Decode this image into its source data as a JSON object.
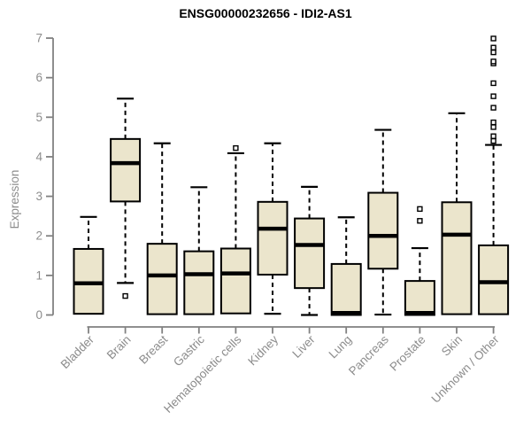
{
  "chart_data": {
    "type": "boxplot",
    "title": "ENSG00000232656 - IDI2-AS1",
    "ylabel": "Expression",
    "xlabel": "",
    "ylim": [
      0,
      7
    ],
    "yticks": [
      0,
      1,
      2,
      3,
      4,
      5,
      6,
      7
    ],
    "grid": false,
    "legend": false,
    "categories": [
      "Bladder",
      "Brain",
      "Breast",
      "Gastric",
      "Hematopoietic cells",
      "Kidney",
      "Liver",
      "Lung",
      "Pancreas",
      "Prostate",
      "Skin",
      "Unknown / Other"
    ],
    "series": [
      {
        "category": "Bladder",
        "whisker_low": null,
        "q1": 0.03,
        "median": 0.8,
        "q3": 1.67,
        "whisker_high": 2.48,
        "outliers": []
      },
      {
        "category": "Brain",
        "whisker_low": 0.81,
        "q1": 2.87,
        "median": 3.84,
        "q3": 4.45,
        "whisker_high": 5.47,
        "outliers": [
          0.48
        ]
      },
      {
        "category": "Breast",
        "whisker_low": null,
        "q1": 0.02,
        "median": 1.0,
        "q3": 1.8,
        "whisker_high": 4.34,
        "outliers": []
      },
      {
        "category": "Gastric",
        "whisker_low": null,
        "q1": 0.02,
        "median": 1.03,
        "q3": 1.61,
        "whisker_high": 3.23,
        "outliers": []
      },
      {
        "category": "Hematopoietic cells",
        "whisker_low": null,
        "q1": 0.04,
        "median": 1.05,
        "q3": 1.68,
        "whisker_high": 4.09,
        "outliers": [
          4.22
        ]
      },
      {
        "category": "Kidney",
        "whisker_low": 0.03,
        "q1": 1.02,
        "median": 2.18,
        "q3": 2.86,
        "whisker_high": 4.34,
        "outliers": []
      },
      {
        "category": "Liver",
        "whisker_low": 0.0,
        "q1": 0.68,
        "median": 1.77,
        "q3": 2.44,
        "whisker_high": 3.24,
        "outliers": []
      },
      {
        "category": "Lung",
        "whisker_low": null,
        "q1": 0.0,
        "median": 0.05,
        "q3": 1.29,
        "whisker_high": 2.47,
        "outliers": []
      },
      {
        "category": "Pancreas",
        "whisker_low": 0.01,
        "q1": 1.17,
        "median": 2.0,
        "q3": 3.09,
        "whisker_high": 4.68,
        "outliers": []
      },
      {
        "category": "Prostate",
        "whisker_low": null,
        "q1": 0.0,
        "median": 0.05,
        "q3": 0.86,
        "whisker_high": 1.69,
        "outliers": [
          2.38,
          2.68
        ]
      },
      {
        "category": "Skin",
        "whisker_low": null,
        "q1": 0.02,
        "median": 2.03,
        "q3": 2.85,
        "whisker_high": 5.1,
        "outliers": []
      },
      {
        "category": "Unknown / Other",
        "whisker_low": null,
        "q1": 0.02,
        "median": 0.83,
        "q3": 1.76,
        "whisker_high": 4.3,
        "outliers": [
          4.4,
          4.52,
          4.75,
          4.87,
          5.24,
          5.53,
          5.86,
          6.36,
          6.41,
          6.64,
          6.76,
          6.99
        ]
      }
    ],
    "colors": {
      "box_fill": "#EBE5CC",
      "box_border": "#000000",
      "median": "#000000",
      "whisker": "#000000",
      "outlier": "#000000",
      "axis": "#818181",
      "tick_label": "#8C8C8C",
      "title": "#000000",
      "background": "#FFFFFF"
    }
  }
}
